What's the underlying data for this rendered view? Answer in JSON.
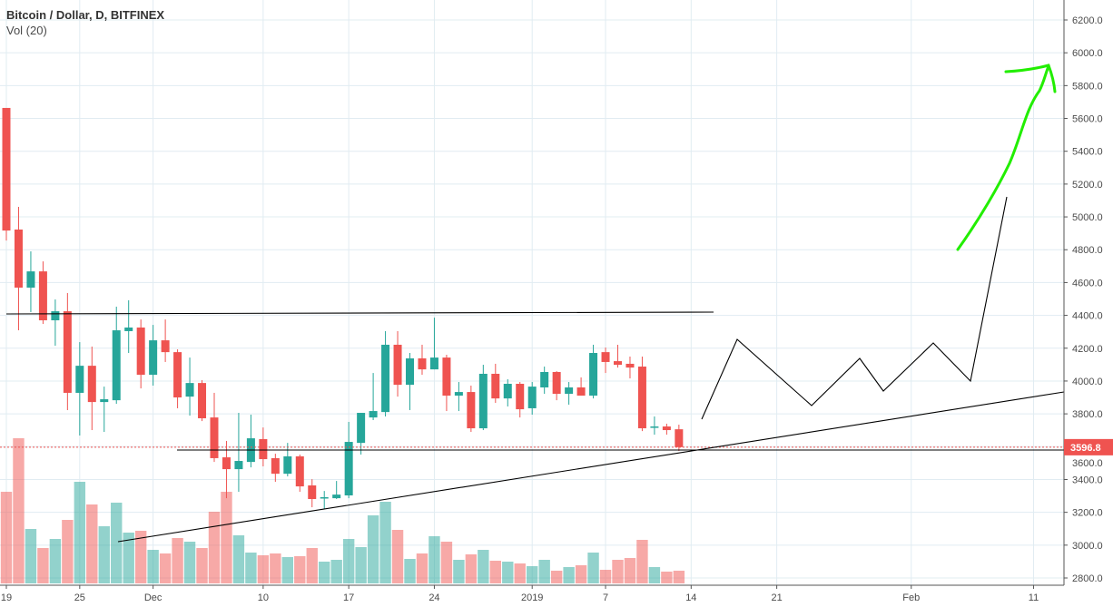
{
  "legend": {
    "title": "Bitcoin / Dollar, D, BITFINEX",
    "indicator": "Vol (20)"
  },
  "colors": {
    "up": "#26a69a",
    "down": "#ef5350",
    "grid": "#e1ecf2",
    "axis": "#555555",
    "drawing": "#000000",
    "arrow": "#22ee00"
  },
  "chart_data": {
    "type": "candlestick",
    "title": "Bitcoin / Dollar, D, BITFINEX",
    "ylabel": "",
    "xlabel": "",
    "ylim": [
      2800,
      6200
    ],
    "grid": true,
    "y_ticks": [
      "6200.0",
      "6000.0",
      "5800.0",
      "5600.0",
      "5400.0",
      "5200.0",
      "5000.0",
      "4800.0",
      "4600.0",
      "4400.0",
      "4200.0",
      "4000.0",
      "3800.0",
      "3600.0",
      "3400.0",
      "3200.0",
      "3000.0",
      "2800.0"
    ],
    "x_ticks": [
      {
        "label": "19",
        "day": 0
      },
      {
        "label": "25",
        "day": 6
      },
      {
        "label": "Dec",
        "day": 12
      },
      {
        "label": "10",
        "day": 21
      },
      {
        "label": "17",
        "day": 28
      },
      {
        "label": "24",
        "day": 35
      },
      {
        "label": "2019",
        "day": 43
      },
      {
        "label": "7",
        "day": 49
      },
      {
        "label": "14",
        "day": 56
      },
      {
        "label": "21",
        "day": 63
      },
      {
        "label": "Feb",
        "day": 74
      },
      {
        "label": "11",
        "day": 84
      }
    ],
    "last_price": "3596.8",
    "ohlc": [
      [
        5664,
        5664,
        4856,
        4917
      ],
      [
        4923,
        5061,
        4309,
        4569
      ],
      [
        4569,
        4790,
        4420,
        4668
      ],
      [
        4668,
        4729,
        4348,
        4370
      ],
      [
        4370,
        4497,
        4215,
        4425
      ],
      [
        4425,
        4536,
        3823,
        3928
      ],
      [
        3928,
        4237,
        3668,
        4093
      ],
      [
        4093,
        4210,
        3701,
        3872
      ],
      [
        3872,
        3966,
        3690,
        3889
      ],
      [
        3883,
        4453,
        3861,
        4309
      ],
      [
        4304,
        4492,
        4171,
        4326
      ],
      [
        4326,
        4375,
        3955,
        4038
      ],
      [
        4038,
        4342,
        3972,
        4248
      ],
      [
        4248,
        4375,
        4116,
        4176
      ],
      [
        4176,
        4193,
        3834,
        3900
      ],
      [
        3905,
        4143,
        3789,
        3988
      ],
      [
        3988,
        4005,
        3756,
        3773
      ],
      [
        3778,
        3928,
        3507,
        3530
      ],
      [
        3535,
        3635,
        3286,
        3463
      ],
      [
        3463,
        3806,
        3325,
        3513
      ],
      [
        3507,
        3795,
        3474,
        3651
      ],
      [
        3646,
        3717,
        3480,
        3524
      ],
      [
        3530,
        3557,
        3386,
        3435
      ],
      [
        3435,
        3623,
        3419,
        3541
      ],
      [
        3541,
        3552,
        3325,
        3358
      ],
      [
        3364,
        3402,
        3231,
        3281
      ],
      [
        3286,
        3330,
        3220,
        3292
      ],
      [
        3286,
        3391,
        3281,
        3308
      ],
      [
        3303,
        3751,
        3286,
        3629
      ],
      [
        3623,
        3806,
        3552,
        3806
      ],
      [
        3778,
        4049,
        3762,
        3817
      ],
      [
        3811,
        4304,
        3784,
        4221
      ],
      [
        4221,
        4304,
        3905,
        3977
      ],
      [
        3977,
        4171,
        3823,
        4138
      ],
      [
        4138,
        4221,
        4038,
        4071
      ],
      [
        4071,
        4386,
        4071,
        4143
      ],
      [
        4143,
        4160,
        3817,
        3911
      ],
      [
        3911,
        3994,
        3817,
        3933
      ],
      [
        3933,
        3972,
        3690,
        3712
      ],
      [
        3712,
        4099,
        3701,
        4044
      ],
      [
        4044,
        4105,
        3867,
        3894
      ],
      [
        3894,
        4011,
        3845,
        3983
      ],
      [
        3983,
        3994,
        3778,
        3828
      ],
      [
        3834,
        3994,
        3795,
        3966
      ],
      [
        3961,
        4088,
        3922,
        4055
      ],
      [
        4055,
        4060,
        3883,
        3922
      ],
      [
        3922,
        3994,
        3856,
        3961
      ],
      [
        3961,
        4022,
        3911,
        3911
      ],
      [
        3911,
        4221,
        3894,
        4171
      ],
      [
        4176,
        4204,
        4049,
        4116
      ],
      [
        4121,
        4221,
        4082,
        4099
      ],
      [
        4105,
        4149,
        4016,
        4082
      ],
      [
        4088,
        4149,
        3695,
        3712
      ],
      [
        3717,
        3784,
        3673,
        3723
      ],
      [
        3723,
        3740,
        3673,
        3701
      ],
      [
        3706,
        3734,
        3574,
        3597
      ]
    ],
    "volume_relative": [
      101,
      160,
      60,
      39,
      49,
      70,
      112,
      87,
      63,
      89,
      56,
      58,
      37,
      33,
      50,
      46,
      39,
      79,
      101,
      53,
      34,
      31,
      33,
      29,
      30,
      39,
      24,
      26,
      49,
      40,
      75,
      90,
      59,
      27,
      33,
      52,
      46,
      26,
      32,
      37,
      25,
      24,
      22,
      19,
      26,
      14,
      18,
      20,
      34,
      15,
      26,
      28,
      48,
      18,
      13,
      14
    ]
  }
}
